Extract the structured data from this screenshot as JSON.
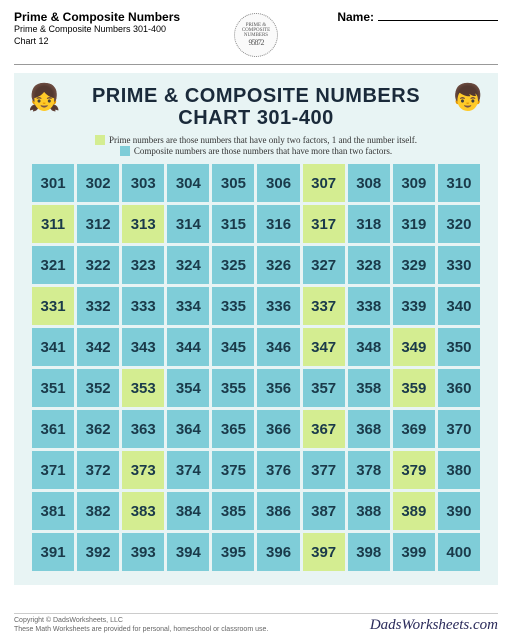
{
  "header": {
    "title": "Prime & Composite Numbers",
    "subtitle1": "Prime & Composite Numbers 301-400",
    "subtitle2": "Chart 12",
    "name_label": "Name:",
    "badge_top": "PRIME &",
    "badge_mid": "COMPOSITE",
    "badge_bot": "NUMBERS",
    "badge_digits": "95872"
  },
  "chart": {
    "title_line1": "PRIME & COMPOSITE  NUMBERS",
    "title_line2": "CHART 301-400",
    "legend_prime": "Prime numbers are those numbers that have only two factors, 1 and the number itself.",
    "legend_composite": "Composite numbers are those numbers that have more than two factors.",
    "colors": {
      "prime": "#d4ed91",
      "composite": "#7fcdd8",
      "background": "#e8f4f4",
      "text": "#1a3a4a"
    },
    "start": 301,
    "end": 400,
    "primes": [
      307,
      311,
      313,
      317,
      331,
      337,
      347,
      349,
      353,
      359,
      367,
      373,
      379,
      383,
      389,
      397
    ]
  },
  "footer": {
    "copyright": "Copyright © DadsWorksheets, LLC",
    "tagline": "These Math Worksheets are provided for personal, homeschool or classroom use.",
    "site": "DadsWorksheets.com"
  }
}
